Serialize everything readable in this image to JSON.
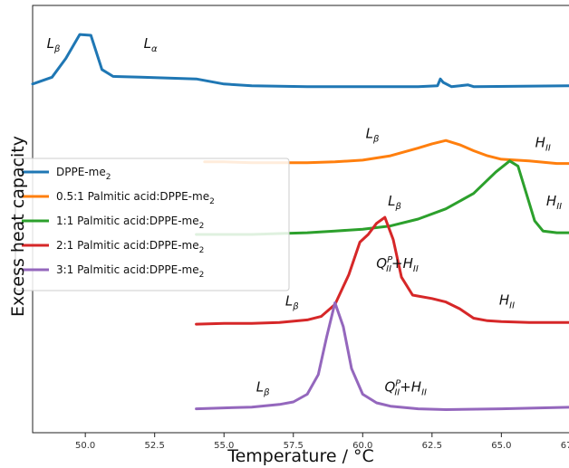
{
  "chart_data": {
    "type": "line",
    "title": "",
    "xlabel": "Temperature / °C",
    "ylabel": "Excess heat capacity",
    "xlim": [
      48.1,
      67.7
    ],
    "xticks": [
      "50.0",
      "52.5",
      "55.0",
      "57.5",
      "60.0",
      "62.5",
      "65.0",
      "67.5"
    ],
    "grid": false,
    "legend": {
      "placement": "center-left",
      "entries": [
        {
          "base": "DPPE-me",
          "sub": "2",
          "color": "#1f77b4"
        },
        {
          "base": "0.5:1 Palmitic acid:DPPE-me",
          "sub": "2",
          "color": "#ff7f0e"
        },
        {
          "base": "1:1 Palmitic acid:DPPE-me",
          "sub": "2",
          "color": "#2ca02c"
        },
        {
          "base": "2:1 Palmitic acid:DPPE-me",
          "sub": "2",
          "color": "#d62728"
        },
        {
          "base": "3:1 Palmitic acid:DPPE-me",
          "sub": "2",
          "color": "#9467bd"
        }
      ]
    },
    "series": [
      {
        "color": "#1f77b4",
        "baseline": 3.9,
        "points": [
          [
            48.1,
            3.88
          ],
          [
            48.8,
            3.96
          ],
          [
            49.3,
            4.18
          ],
          [
            49.8,
            4.46
          ],
          [
            50.2,
            4.45
          ],
          [
            50.6,
            4.05
          ],
          [
            51.0,
            3.97
          ],
          [
            52.0,
            3.96
          ],
          [
            53.0,
            3.95
          ],
          [
            54.0,
            3.94
          ],
          [
            55.0,
            3.88
          ],
          [
            56.0,
            3.86
          ],
          [
            58.0,
            3.85
          ],
          [
            60.0,
            3.85
          ],
          [
            62.0,
            3.85
          ],
          [
            62.7,
            3.86
          ],
          [
            62.8,
            3.94
          ],
          [
            62.9,
            3.9
          ],
          [
            63.2,
            3.85
          ],
          [
            63.8,
            3.87
          ],
          [
            64.0,
            3.85
          ],
          [
            67.7,
            3.86
          ]
        ]
      },
      {
        "color": "#ff7f0e",
        "baseline": 2.92,
        "points": [
          [
            54.3,
            2.97
          ],
          [
            55.0,
            2.97
          ],
          [
            56.0,
            2.96
          ],
          [
            57.0,
            2.96
          ],
          [
            58.0,
            2.96
          ],
          [
            59.0,
            2.97
          ],
          [
            60.0,
            2.99
          ],
          [
            61.0,
            3.04
          ],
          [
            62.0,
            3.13
          ],
          [
            62.5,
            3.18
          ],
          [
            63.0,
            3.22
          ],
          [
            63.5,
            3.17
          ],
          [
            64.0,
            3.1
          ],
          [
            64.5,
            3.04
          ],
          [
            65.0,
            3.0
          ],
          [
            66.0,
            2.98
          ],
          [
            67.0,
            2.95
          ],
          [
            67.7,
            2.95
          ]
        ]
      },
      {
        "color": "#2ca02c",
        "baseline": 2.05,
        "points": [
          [
            54.0,
            2.12
          ],
          [
            55.0,
            2.12
          ],
          [
            56.0,
            2.12
          ],
          [
            57.0,
            2.13
          ],
          [
            58.0,
            2.14
          ],
          [
            59.0,
            2.16
          ],
          [
            60.0,
            2.18
          ],
          [
            61.0,
            2.22
          ],
          [
            62.0,
            2.3
          ],
          [
            63.0,
            2.42
          ],
          [
            64.0,
            2.6
          ],
          [
            64.8,
            2.85
          ],
          [
            65.3,
            2.98
          ],
          [
            65.6,
            2.92
          ],
          [
            65.9,
            2.6
          ],
          [
            66.2,
            2.28
          ],
          [
            66.5,
            2.16
          ],
          [
            67.0,
            2.14
          ],
          [
            67.7,
            2.14
          ]
        ]
      },
      {
        "color": "#d62728",
        "baseline": 1.05,
        "points": [
          [
            54.0,
            1.07
          ],
          [
            55.0,
            1.08
          ],
          [
            56.0,
            1.08
          ],
          [
            57.0,
            1.09
          ],
          [
            58.0,
            1.12
          ],
          [
            58.5,
            1.16
          ],
          [
            59.0,
            1.3
          ],
          [
            59.5,
            1.65
          ],
          [
            59.9,
            2.03
          ],
          [
            60.2,
            2.12
          ],
          [
            60.5,
            2.25
          ],
          [
            60.8,
            2.32
          ],
          [
            61.1,
            2.06
          ],
          [
            61.4,
            1.62
          ],
          [
            61.8,
            1.41
          ],
          [
            62.5,
            1.37
          ],
          [
            63.0,
            1.33
          ],
          [
            63.5,
            1.25
          ],
          [
            64.0,
            1.14
          ],
          [
            64.5,
            1.11
          ],
          [
            65.0,
            1.1
          ],
          [
            66.0,
            1.09
          ],
          [
            67.7,
            1.09
          ]
        ]
      },
      {
        "color": "#9467bd",
        "baseline": 0.05,
        "points": [
          [
            54.0,
            0.08
          ],
          [
            55.0,
            0.09
          ],
          [
            56.0,
            0.1
          ],
          [
            57.0,
            0.13
          ],
          [
            57.5,
            0.16
          ],
          [
            58.0,
            0.25
          ],
          [
            58.4,
            0.48
          ],
          [
            58.7,
            0.92
          ],
          [
            59.0,
            1.32
          ],
          [
            59.3,
            1.04
          ],
          [
            59.6,
            0.55
          ],
          [
            60.0,
            0.25
          ],
          [
            60.5,
            0.15
          ],
          [
            61.0,
            0.11
          ],
          [
            62.0,
            0.08
          ],
          [
            63.0,
            0.07
          ],
          [
            65.0,
            0.08
          ],
          [
            67.7,
            0.1
          ]
        ]
      }
    ],
    "annotations": [
      {
        "base": "L",
        "sub": "β",
        "sup": "",
        "rest": "",
        "x": 48.85,
        "y": 4.3
      },
      {
        "base": "L",
        "sub": "α",
        "sup": "",
        "rest": "",
        "x": 52.35,
        "y": 4.3
      },
      {
        "base": "L",
        "sub": "β",
        "sup": "",
        "rest": "",
        "x": 60.35,
        "y": 3.25
      },
      {
        "base": "H",
        "sub": "II",
        "sup": "",
        "rest": "",
        "x": 66.5,
        "y": 3.14
      },
      {
        "base": "L",
        "sub": "β",
        "sup": "",
        "rest": "",
        "x": 61.15,
        "y": 2.46
      },
      {
        "base": "H",
        "sub": "II",
        "sup": "",
        "rest": "",
        "x": 66.9,
        "y": 2.46
      },
      {
        "base": "Q",
        "sub": "II",
        "sup": "P",
        "rest": "+H",
        "rest_sub": "II",
        "x": 61.25,
        "y": 1.73
      },
      {
        "base": "H",
        "sub": "II",
        "sup": "",
        "rest": "",
        "x": 65.2,
        "y": 1.3
      },
      {
        "base": "L",
        "sub": "β",
        "sup": "",
        "rest": "",
        "x": 57.45,
        "y": 1.29
      },
      {
        "base": "Q",
        "sub": "II",
        "sup": "P",
        "rest": "+H",
        "rest_sub": "II",
        "x": 61.55,
        "y": 0.28
      },
      {
        "base": "L",
        "sub": "β",
        "sup": "",
        "rest": "",
        "x": 56.4,
        "y": 0.28
      }
    ]
  }
}
